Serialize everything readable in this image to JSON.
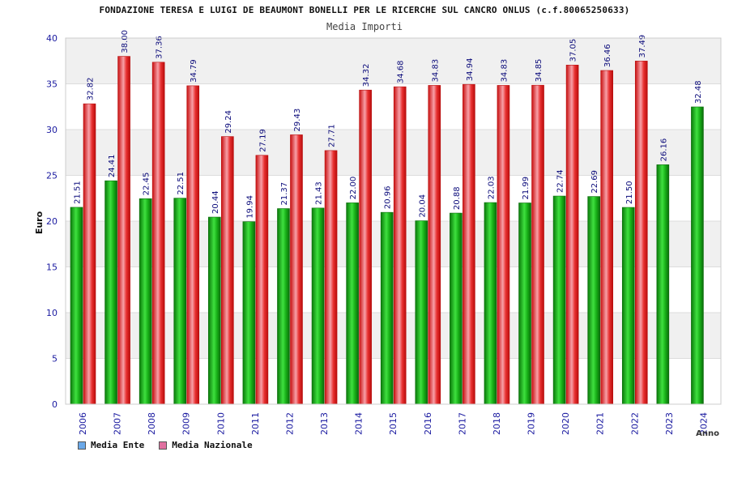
{
  "chart_data": {
    "type": "bar",
    "title": "FONDAZIONE TERESA E LUIGI DE BEAUMONT BONELLI PER LE RICERCHE SUL CANCRO ONLUS (c.f.80065250633)",
    "subtitle": "Media Importi",
    "xlabel": "Anno",
    "ylabel": "Euro",
    "ylim": [
      0,
      40
    ],
    "yticks": [
      0,
      5,
      10,
      15,
      20,
      25,
      30,
      35,
      40
    ],
    "grid": true,
    "legend_position": "bottom-left",
    "categories": [
      "2006",
      "2007",
      "2008",
      "2009",
      "2010",
      "2011",
      "2012",
      "2013",
      "2014",
      "2015",
      "2016",
      "2017",
      "2018",
      "2019",
      "2020",
      "2021",
      "2022",
      "2023",
      "2024"
    ],
    "series": [
      {
        "name": "Media Ente",
        "color": "#22b422",
        "legend_color": "#6aa8e8",
        "values": [
          21.51,
          24.41,
          22.45,
          22.51,
          20.44,
          19.94,
          21.37,
          21.43,
          22.0,
          20.96,
          20.04,
          20.88,
          22.03,
          21.99,
          22.74,
          22.69,
          21.5,
          26.16,
          32.48
        ],
        "labels": [
          "21.51",
          "24.41",
          "22.45",
          "22.51",
          "20.44",
          "19.94",
          "21.37",
          "21.43",
          "22.00",
          "20.96",
          "20.04",
          "20.88",
          "22.03",
          "21.99",
          "22.74",
          "22.69",
          "21.50",
          "26.16",
          "32.48"
        ]
      },
      {
        "name": "Media Nazionale",
        "color": "#e52a2a",
        "legend_color": "#e070a0",
        "values": [
          32.82,
          38.0,
          37.36,
          34.79,
          29.24,
          27.19,
          29.43,
          27.71,
          34.32,
          34.68,
          34.83,
          34.94,
          34.83,
          34.85,
          37.05,
          36.46,
          37.49,
          null,
          null
        ],
        "labels": [
          "32.82",
          "38.00",
          "37.36",
          "34.79",
          "29.24",
          "27.19",
          "29.43",
          "27.71",
          "34.32",
          "34.68",
          "34.83",
          "34.94",
          "34.83",
          "34.85",
          "37.05",
          "36.46",
          "37.49",
          null,
          null
        ]
      }
    ]
  }
}
